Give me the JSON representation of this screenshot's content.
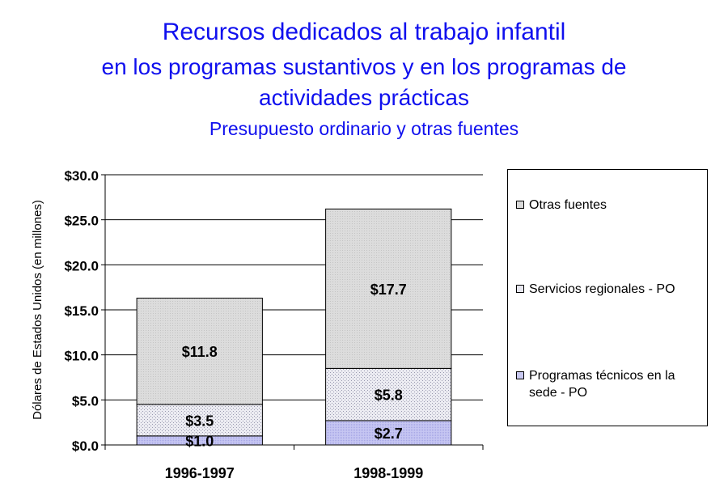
{
  "title": {
    "line1": "Recursos dedicados al trabajo infantil",
    "line2": "en los programas sustantivos y en los programas de",
    "line3": "actividades prácticas",
    "line4": "Presupuesto ordinario y otras fuentes"
  },
  "colors": {
    "title": "#1010ee",
    "otras": "#d9d9d9",
    "servicios": "#e6e6ee",
    "programas": "#c8c8f0"
  },
  "legend": {
    "items": [
      {
        "label": "Otras fuentes",
        "swatch": "otras"
      },
      {
        "label": "Servicios regionales - PO",
        "swatch": "servicios"
      },
      {
        "label": "Programas técnicos en la sede - PO",
        "swatch": "programas"
      }
    ]
  },
  "chart_data": {
    "type": "bar",
    "stacked": true,
    "categories": [
      "1996-1997",
      "1998-1999"
    ],
    "series": [
      {
        "name": "Programas técnicos en la sede - PO",
        "values": [
          1.0,
          2.7
        ],
        "labels": [
          "$1.0",
          "$2.7"
        ]
      },
      {
        "name": "Servicios regionales - PO",
        "values": [
          3.5,
          5.8
        ],
        "labels": [
          "$3.5",
          "$5.8"
        ]
      },
      {
        "name": "Otras fuentes",
        "values": [
          11.8,
          17.7
        ],
        "labels": [
          "$11.8",
          "$17.7"
        ]
      }
    ],
    "ylabel": "Dólares de Estados Unidos (en millones)",
    "ylim": [
      0,
      30
    ],
    "yticks": [
      "$0.0",
      "$5.0",
      "$10.0",
      "$15.0",
      "$20.0",
      "$25.0",
      "$30.0"
    ],
    "grid": true,
    "legend_position": "right"
  }
}
